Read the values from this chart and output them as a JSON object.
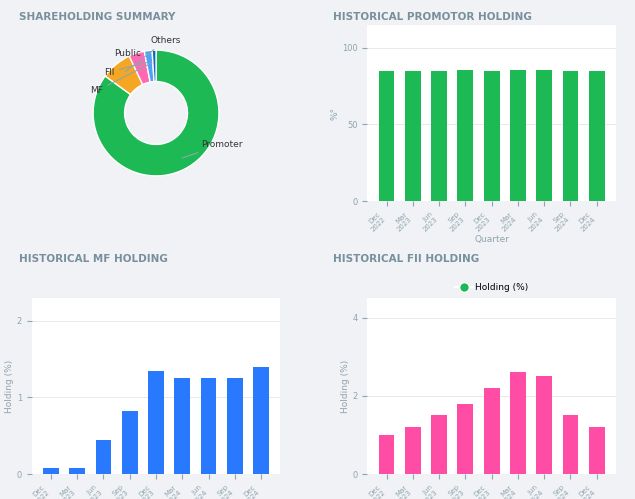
{
  "quarters": [
    "Dec 2022",
    "Mar 2023",
    "Jun 2023",
    "Sep 2023",
    "Dec 2023",
    "Mar 2024",
    "Jun 2024",
    "Sep 2024",
    "Dec 2024"
  ],
  "promoter_holding": [
    85.0,
    85.0,
    85.0,
    85.5,
    85.0,
    85.5,
    85.5,
    85.0,
    85.0
  ],
  "mf_holding": [
    0.08,
    0.08,
    0.45,
    0.82,
    1.35,
    1.25,
    1.25,
    1.25,
    1.4
  ],
  "fii_holding": [
    1.0,
    1.2,
    1.5,
    1.8,
    2.2,
    2.6,
    2.5,
    1.5,
    1.2
  ],
  "pie_labels": [
    "Promoter",
    "Others",
    "Public",
    "FII",
    "MF"
  ],
  "pie_values": [
    85.0,
    8.0,
    4.0,
    2.0,
    1.0
  ],
  "pie_colors": [
    "#1db954",
    "#f5a623",
    "#ff69b4",
    "#4fa3f7",
    "#1565c0"
  ],
  "promoter_color": "#1db954",
  "mf_color": "#2979ff",
  "fii_color": "#ff4da6",
  "title_color": "#78909c",
  "title1": "SHAREHOLDING SUMMARY",
  "title2": "HISTORICAL PROMOTOR HOLDING",
  "title3": "HISTORICAL MF HOLDING",
  "title4": "HISTORICAL FII HOLDING",
  "bg_color": "#f0f2f5",
  "panel_bg": "#ffffff"
}
